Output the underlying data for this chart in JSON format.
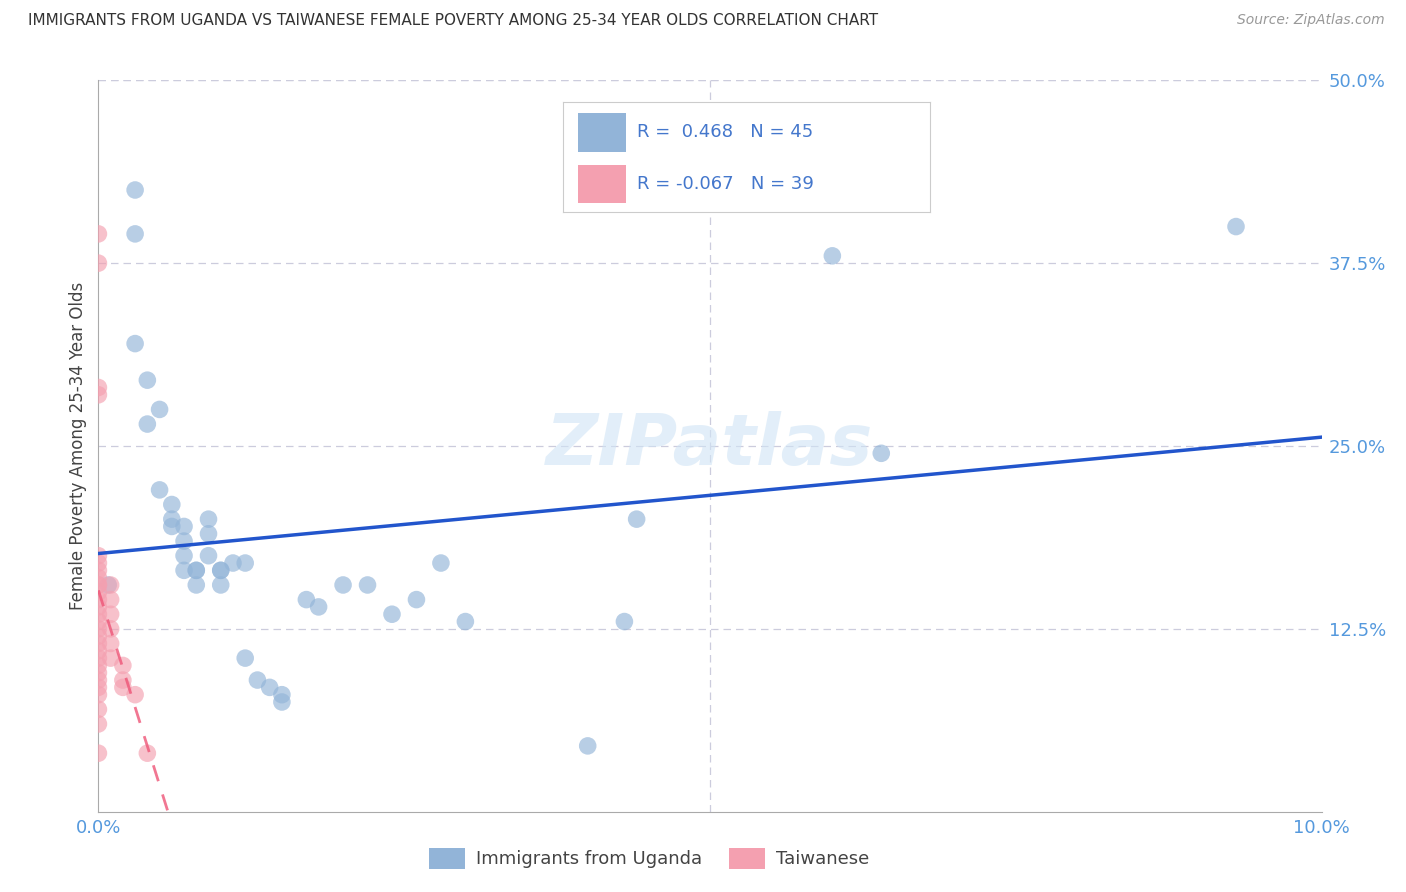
{
  "title": "IMMIGRANTS FROM UGANDA VS TAIWANESE FEMALE POVERTY AMONG 25-34 YEAR OLDS CORRELATION CHART",
  "source": "Source: ZipAtlas.com",
  "ylabel": "Female Poverty Among 25-34 Year Olds",
  "xlabel_blue": "Immigrants from Uganda",
  "xlabel_pink": "Taiwanese",
  "xmin": 0.0,
  "xmax": 0.1,
  "ymin": 0.0,
  "ymax": 0.5,
  "xticks": [
    0.0,
    0.02,
    0.04,
    0.06,
    0.08,
    0.1
  ],
  "yticks": [
    0.0,
    0.125,
    0.25,
    0.375,
    0.5
  ],
  "ytick_labels": [
    "",
    "12.5%",
    "25.0%",
    "37.5%",
    "50.0%"
  ],
  "xtick_labels": [
    "0.0%",
    "",
    "",
    "",
    "",
    "10.0%"
  ],
  "legend_blue_R": " 0.468",
  "legend_blue_N": "45",
  "legend_pink_R": "-0.067",
  "legend_pink_N": "39",
  "blue_color": "#92B4D8",
  "pink_color": "#F4A0B0",
  "blue_line_color": "#2255CC",
  "pink_line_color": "#EE5577",
  "watermark": "ZIPatlas",
  "background_color": "#FFFFFF",
  "grid_color": "#CCCCDD",
  "blue_scatter": [
    [
      0.0008,
      0.155
    ],
    [
      0.003,
      0.425
    ],
    [
      0.003,
      0.395
    ],
    [
      0.003,
      0.32
    ],
    [
      0.004,
      0.295
    ],
    [
      0.004,
      0.265
    ],
    [
      0.005,
      0.275
    ],
    [
      0.005,
      0.22
    ],
    [
      0.006,
      0.21
    ],
    [
      0.006,
      0.2
    ],
    [
      0.006,
      0.195
    ],
    [
      0.007,
      0.195
    ],
    [
      0.007,
      0.185
    ],
    [
      0.007,
      0.175
    ],
    [
      0.007,
      0.165
    ],
    [
      0.008,
      0.165
    ],
    [
      0.008,
      0.165
    ],
    [
      0.008,
      0.155
    ],
    [
      0.009,
      0.2
    ],
    [
      0.009,
      0.19
    ],
    [
      0.009,
      0.175
    ],
    [
      0.01,
      0.165
    ],
    [
      0.01,
      0.165
    ],
    [
      0.01,
      0.155
    ],
    [
      0.011,
      0.17
    ],
    [
      0.012,
      0.17
    ],
    [
      0.012,
      0.105
    ],
    [
      0.013,
      0.09
    ],
    [
      0.014,
      0.085
    ],
    [
      0.015,
      0.08
    ],
    [
      0.015,
      0.075
    ],
    [
      0.017,
      0.145
    ],
    [
      0.018,
      0.14
    ],
    [
      0.02,
      0.155
    ],
    [
      0.022,
      0.155
    ],
    [
      0.024,
      0.135
    ],
    [
      0.026,
      0.145
    ],
    [
      0.028,
      0.17
    ],
    [
      0.03,
      0.13
    ],
    [
      0.04,
      0.045
    ],
    [
      0.043,
      0.13
    ],
    [
      0.044,
      0.2
    ],
    [
      0.06,
      0.38
    ],
    [
      0.064,
      0.245
    ],
    [
      0.093,
      0.4
    ]
  ],
  "pink_scatter": [
    [
      0.0,
      0.395
    ],
    [
      0.0,
      0.375
    ],
    [
      0.0,
      0.29
    ],
    [
      0.0,
      0.285
    ],
    [
      0.0,
      0.175
    ],
    [
      0.0,
      0.17
    ],
    [
      0.0,
      0.165
    ],
    [
      0.0,
      0.16
    ],
    [
      0.0,
      0.155
    ],
    [
      0.0,
      0.155
    ],
    [
      0.0,
      0.15
    ],
    [
      0.0,
      0.145
    ],
    [
      0.0,
      0.14
    ],
    [
      0.0,
      0.135
    ],
    [
      0.0,
      0.13
    ],
    [
      0.0,
      0.125
    ],
    [
      0.0,
      0.12
    ],
    [
      0.0,
      0.115
    ],
    [
      0.0,
      0.11
    ],
    [
      0.0,
      0.105
    ],
    [
      0.0,
      0.1
    ],
    [
      0.0,
      0.095
    ],
    [
      0.0,
      0.09
    ],
    [
      0.0,
      0.085
    ],
    [
      0.0,
      0.08
    ],
    [
      0.0,
      0.07
    ],
    [
      0.0,
      0.06
    ],
    [
      0.001,
      0.155
    ],
    [
      0.001,
      0.145
    ],
    [
      0.001,
      0.135
    ],
    [
      0.001,
      0.125
    ],
    [
      0.001,
      0.115
    ],
    [
      0.001,
      0.105
    ],
    [
      0.002,
      0.1
    ],
    [
      0.002,
      0.09
    ],
    [
      0.002,
      0.085
    ],
    [
      0.003,
      0.08
    ],
    [
      0.004,
      0.04
    ],
    [
      0.0,
      0.04
    ]
  ]
}
